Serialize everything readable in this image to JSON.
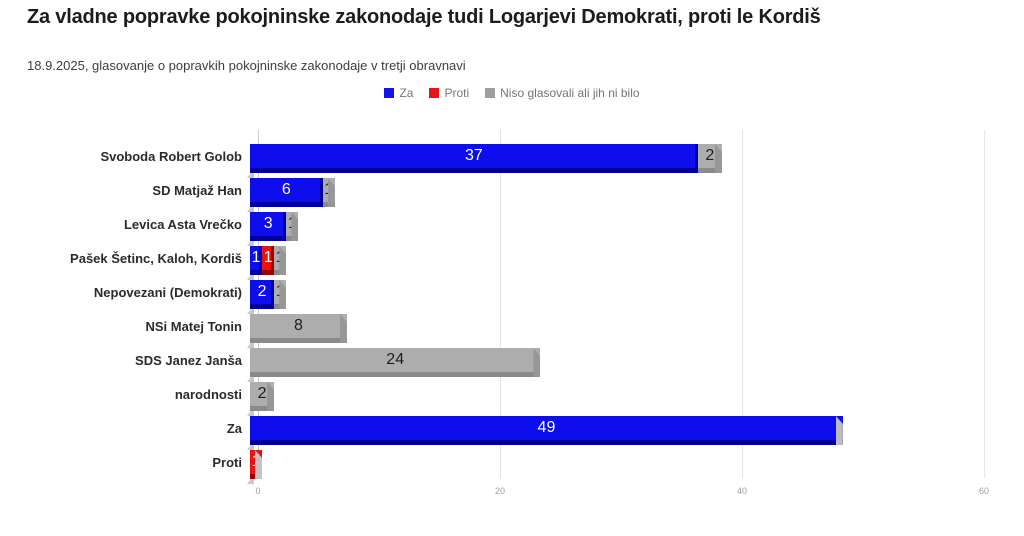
{
  "header": {
    "title": "Za vladne popravke pokojninske zakonodaje tudi Logarjevi Demokrati, proti le Kordiš",
    "subtitle": "18.9.2025, glasovanje o popravkih pokojninske zakonodaje v tretji obravnavi"
  },
  "legend": {
    "items": [
      {
        "label": "Za",
        "color": "#1414e8"
      },
      {
        "label": "Proti",
        "color": "#e81414"
      },
      {
        "label": "Niso glasovali ali jih ni bilo",
        "color": "#9e9e9e"
      }
    ]
  },
  "series_colors": {
    "Za": {
      "face": "#0d0dee",
      "dark": "#000098",
      "cap": "#bcbcbc",
      "text": "#ffffff"
    },
    "Proti": {
      "face": "#e81212",
      "dark": "#990000",
      "cap": "#c4c4c4",
      "text": "#ffffff"
    },
    "Niso glasovali ali jih ni bilo": {
      "face": "#adadad",
      "dark": "#8a8a8a",
      "cap": "#979797",
      "text": "#1e1e1e"
    }
  },
  "chart_data": {
    "type": "bar",
    "orientation": "horizontal",
    "stacked": true,
    "title": "Za vladne popravke pokojninske zakonodaje tudi Logarjevi Demokrati, proti le Kordiš",
    "subtitle": "18.9.2025, glasovanje o popravkih pokojninske zakonodaje v tretji obravnavi",
    "categories": [
      "Svoboda Robert Golob",
      "SD Matjaž Han",
      "Levica Asta Vrečko",
      "Pašek Šetinc, Kaloh, Kordiš",
      "Nepovezani (Demokrati)",
      "NSi Matej Tonin",
      "SDS Janez Janša",
      "narodnosti",
      "Za",
      "Proti"
    ],
    "series": [
      {
        "name": "Za",
        "values": [
          37,
          6,
          3,
          1,
          2,
          0,
          0,
          0,
          49,
          0
        ]
      },
      {
        "name": "Proti",
        "values": [
          0,
          0,
          0,
          1,
          0,
          0,
          0,
          0,
          0,
          1
        ]
      },
      {
        "name": "Niso glasovali ali jih ni bilo",
        "values": [
          2,
          1,
          1,
          1,
          1,
          8,
          24,
          2,
          0,
          0
        ]
      }
    ],
    "xlabel": "",
    "ylabel": "",
    "xlim": [
      0,
      60
    ],
    "x_ticks": [
      0,
      20,
      40,
      60
    ],
    "grid": "vertical",
    "legend_position": "top-center"
  }
}
